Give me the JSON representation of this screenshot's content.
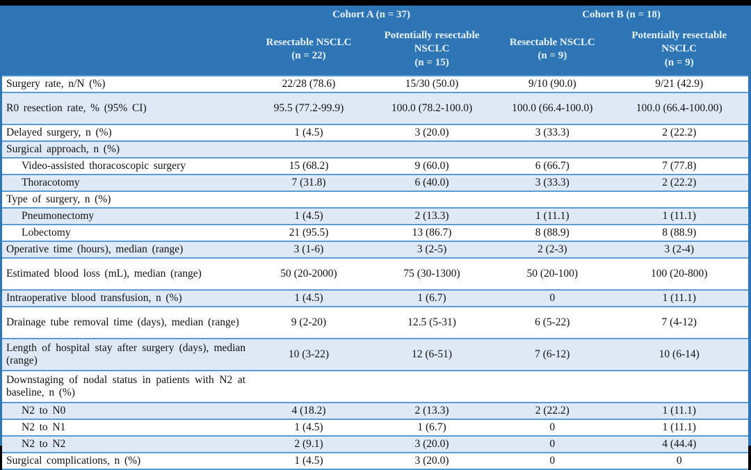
{
  "colors": {
    "header_bg": "#2E75B6",
    "header_text": "#E9F1F9",
    "shaded_row_bg": "#DEE9F5",
    "row_border": "#5B9BD5",
    "outer_frame": "#000000"
  },
  "table": {
    "groups": [
      {
        "label": "Cohort A (n = 37)"
      },
      {
        "label": "Cohort B (n = 18)"
      }
    ],
    "columns": [
      {
        "name": "Resectable NSCLC",
        "n": "(n = 22)"
      },
      {
        "name": "Potentially resectable NSCLC",
        "n": "(n = 15)"
      },
      {
        "name": "Resectable NSCLC",
        "n": "(n = 9)"
      },
      {
        "name": "Potentially resectable NSCLC",
        "n": "(n = 9)"
      }
    ],
    "rows": [
      {
        "label": "Surgery rate, n/N (%)",
        "values": [
          "22/28 (78.6)",
          "15/30 (50.0)",
          "9/10 (90.0)",
          "9/21 (42.9)"
        ],
        "shaded": false,
        "indent": false,
        "tall": false
      },
      {
        "label": "R0 resection rate, % (95% CI)",
        "values": [
          "95.5 (77.2-99.9)",
          "100.0 (78.2-100.0)",
          "100.0 (66.4-100.0)",
          "100.0 (66.4-100.00)"
        ],
        "shaded": true,
        "indent": false,
        "tall": true
      },
      {
        "label": "Delayed surgery, n (%)",
        "values": [
          "1 (4.5)",
          "3 (20.0)",
          "3 (33.3)",
          "2 (22.2)"
        ],
        "shaded": false,
        "indent": false,
        "tall": false
      },
      {
        "label": "Surgical approach, n (%)",
        "values": [
          "",
          "",
          "",
          ""
        ],
        "shaded": true,
        "indent": false,
        "tall": false
      },
      {
        "label": "Video-assisted thoracoscopic surgery",
        "values": [
          "15 (68.2)",
          "9 (60.0)",
          "6 (66.7)",
          "7 (77.8)"
        ],
        "shaded": false,
        "indent": true,
        "tall": false
      },
      {
        "label": "Thoracotomy",
        "values": [
          "7 (31.8)",
          "6 (40.0)",
          "3 (33.3)",
          "2 (22.2)"
        ],
        "shaded": true,
        "indent": true,
        "tall": false
      },
      {
        "label": "Type of surgery, n (%)",
        "values": [
          "",
          "",
          "",
          ""
        ],
        "shaded": false,
        "indent": false,
        "tall": false
      },
      {
        "label": "Pneumonectomy",
        "values": [
          "1 (4.5)",
          "2 (13.3)",
          "1 (11.1)",
          "1 (11.1)"
        ],
        "shaded": true,
        "indent": true,
        "tall": false
      },
      {
        "label": "Lobectomy",
        "values": [
          "21 (95.5)",
          "13 (86.7)",
          "8 (88.9)",
          "8 (88.9)"
        ],
        "shaded": false,
        "indent": true,
        "tall": false
      },
      {
        "label": "Operative time (hours), median (range)",
        "values": [
          "3 (1-6)",
          "3 (2-5)",
          "2 (2-3)",
          "3 (2-4)"
        ],
        "shaded": true,
        "indent": false,
        "tall": false
      },
      {
        "label": "Estimated blood loss (mL), median (range)",
        "values": [
          "50 (20-2000)",
          "75 (30-1300)",
          "50 (20-100)",
          "100 (20-800)"
        ],
        "shaded": false,
        "indent": false,
        "tall": true
      },
      {
        "label": "Intraoperative blood transfusion, n (%)",
        "values": [
          "1 (4.5)",
          "1 (6.7)",
          "0",
          "1 (11.1)"
        ],
        "shaded": true,
        "indent": false,
        "tall": false
      },
      {
        "label": "Drainage tube removal time (days), median (range)",
        "values": [
          "9 (2-20)",
          "12.5 (5-31)",
          "6 (5-22)",
          "7 (4-12)"
        ],
        "shaded": false,
        "indent": false,
        "tall": true
      },
      {
        "label": "Length of hospital stay after surgery (days), median (range)",
        "values": [
          "10 (3-22)",
          "12 (6-51)",
          "7 (6-12)",
          "10 (6-14)"
        ],
        "shaded": true,
        "indent": false,
        "tall": true
      },
      {
        "label": "Downstaging of nodal status in patients with N2 at baseline, n (%)",
        "values": [
          "",
          "",
          "",
          ""
        ],
        "shaded": false,
        "indent": false,
        "tall": true
      },
      {
        "label": "N2 to N0",
        "values": [
          "4 (18.2)",
          "2 (13.3)",
          "2 (22.2)",
          "1 (11.1)"
        ],
        "shaded": true,
        "indent": true,
        "tall": false
      },
      {
        "label": "N2 to N1",
        "values": [
          "1 (4.5)",
          "1 (6.7)",
          "0",
          "1 (11.1)"
        ],
        "shaded": false,
        "indent": true,
        "tall": false
      },
      {
        "label": "N2 to N2",
        "values": [
          "2 (9.1)",
          "3 (20.0)",
          "0",
          "4 (44.4)"
        ],
        "shaded": true,
        "indent": true,
        "tall": false
      },
      {
        "label": "Surgical complications, n (%)",
        "values": [
          "1 (4.5)",
          "3 (20.0)",
          "0",
          "0"
        ],
        "shaded": false,
        "indent": false,
        "tall": false
      }
    ]
  }
}
